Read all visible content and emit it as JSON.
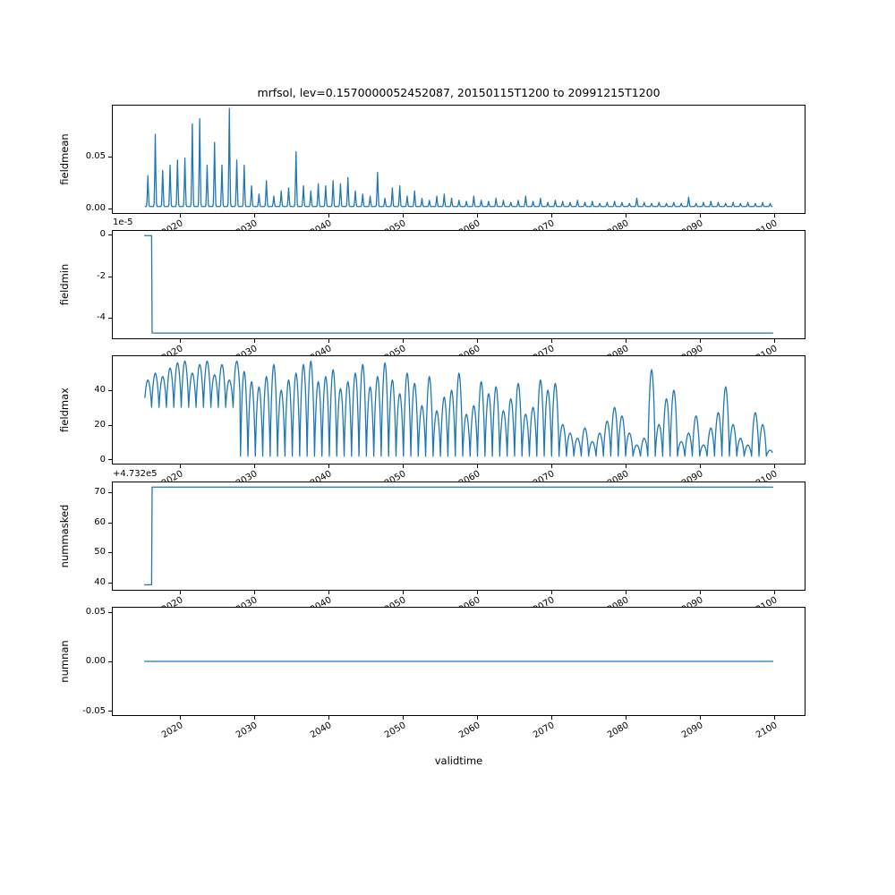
{
  "chart_data": {
    "type": "line",
    "title": "mrfsol, lev=0.1570000052452087, 20150115T1200 to 20991215T1200",
    "xlabel": "validtime",
    "line_color": "#1f77b4",
    "xlim": [
      2010.8,
      2104.2
    ],
    "x_start": 2015.042,
    "x_end": 2099.958,
    "x_ticks": [
      {
        "v": 2020,
        "label": "2020"
      },
      {
        "v": 2030,
        "label": "2030"
      },
      {
        "v": 2040,
        "label": "2040"
      },
      {
        "v": 2050,
        "label": "2050"
      },
      {
        "v": 2060,
        "label": "2060"
      },
      {
        "v": 2070,
        "label": "2070"
      },
      {
        "v": 2080,
        "label": "2080"
      },
      {
        "v": 2090,
        "label": "2090"
      },
      {
        "v": 2100,
        "label": "2100"
      }
    ],
    "subplots": [
      {
        "ylabel": "fieldmean",
        "ylim": [
          -0.0048,
          0.0992
        ],
        "yticks": [
          {
            "v": 0.0,
            "label": "0.00"
          },
          {
            "v": 0.05,
            "label": "0.05"
          }
        ],
        "series": {
          "type": "annual_spikes",
          "baseline": 0.0015,
          "start_year": 2015,
          "annual_peaks": [
            0.03,
            0.07,
            0.035,
            0.04,
            0.045,
            0.047,
            0.08,
            0.085,
            0.04,
            0.062,
            0.04,
            0.095,
            0.045,
            0.04,
            0.02,
            0.012,
            0.025,
            0.01,
            0.015,
            0.018,
            0.053,
            0.02,
            0.015,
            0.022,
            0.02,
            0.025,
            0.022,
            0.028,
            0.015,
            0.012,
            0.01,
            0.033,
            0.008,
            0.018,
            0.02,
            0.01,
            0.015,
            0.008,
            0.006,
            0.01,
            0.012,
            0.008,
            0.006,
            0.005,
            0.01,
            0.006,
            0.005,
            0.008,
            0.006,
            0.004,
            0.006,
            0.01,
            0.005,
            0.008,
            0.004,
            0.006,
            0.005,
            0.004,
            0.006,
            0.004,
            0.005,
            0.003,
            0.004,
            0.005,
            0.004,
            0.003,
            0.008,
            0.004,
            0.003,
            0.004,
            0.003,
            0.004,
            0.003,
            0.009,
            0.003,
            0.004,
            0.005,
            0.004,
            0.003,
            0.004,
            0.003,
            0.004,
            0.003,
            0.004,
            0.003
          ]
        }
      },
      {
        "ylabel": "fieldmin",
        "offset_text": "1e-5",
        "ylim": [
          -5.05e-05,
          2.3e-06
        ],
        "yticks": [
          {
            "v": 0,
            "label": "0"
          },
          {
            "v": -2e-05,
            "label": "-2"
          },
          {
            "v": -4e-05,
            "label": "-4"
          }
        ],
        "series": {
          "type": "segments",
          "points": [
            [
              2015.042,
              0
            ],
            [
              2016.04,
              0
            ],
            [
              2016.12,
              -4.79e-05
            ],
            [
              2099.958,
              -4.79e-05
            ]
          ]
        }
      },
      {
        "ylabel": "fieldmax",
        "ylim": [
          -2.85,
          59.85
        ],
        "yticks": [
          {
            "v": 0,
            "label": "0"
          },
          {
            "v": 20,
            "label": "20"
          },
          {
            "v": 40,
            "label": "40"
          }
        ],
        "series": {
          "type": "annual_wave",
          "start_year": 2015,
          "min_early": 30,
          "min_late": 1.5,
          "min_switch_year": 2028,
          "annual_peaks": [
            46,
            50,
            48,
            53,
            56,
            57,
            50,
            55,
            57,
            49,
            55,
            46,
            57,
            51,
            45,
            42,
            48,
            55,
            40,
            46,
            50,
            55,
            57,
            45,
            48,
            52,
            41,
            45,
            50,
            55,
            42,
            48,
            56,
            46,
            38,
            50,
            44,
            31,
            48,
            28,
            36,
            40,
            50,
            26,
            31,
            45,
            38,
            42,
            28,
            35,
            44,
            26,
            30,
            46,
            40,
            44,
            20,
            15,
            12,
            18,
            10,
            15,
            22,
            30,
            25,
            15,
            8,
            12,
            52,
            20,
            35,
            40,
            10,
            15,
            25,
            8,
            18,
            27,
            42,
            20,
            12,
            8,
            27,
            20,
            5
          ]
        }
      },
      {
        "ylabel": "nummasked",
        "offset_text": "+4.732e5",
        "ylim": [
          473237.3,
          473273.6
        ],
        "yticks": [
          {
            "v": 473240,
            "label": "40"
          },
          {
            "v": 473250,
            "label": "50"
          },
          {
            "v": 473260,
            "label": "60"
          },
          {
            "v": 473270,
            "label": "70"
          }
        ],
        "series": {
          "type": "segments",
          "points": [
            [
              2015.042,
              473239
            ],
            [
              2016.04,
              473239
            ],
            [
              2016.12,
              473272
            ],
            [
              2099.958,
              473272
            ]
          ]
        }
      },
      {
        "ylabel": "numnan",
        "ylim": [
          -0.055,
          0.055
        ],
        "yticks": [
          {
            "v": -0.05,
            "label": "-0.05"
          },
          {
            "v": 0.0,
            "label": "0.00"
          },
          {
            "v": 0.05,
            "label": "0.05"
          }
        ],
        "series": {
          "type": "segments",
          "points": [
            [
              2015.042,
              0
            ],
            [
              2099.958,
              0
            ]
          ]
        }
      }
    ]
  }
}
